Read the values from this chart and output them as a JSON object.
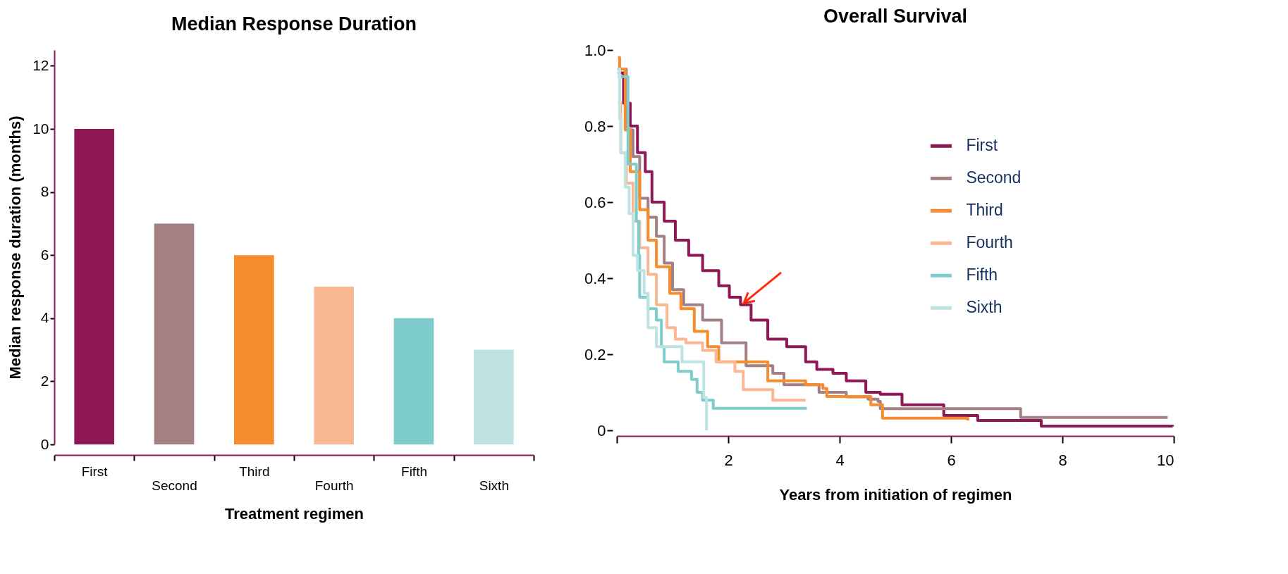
{
  "chart_data": [
    {
      "type": "bar",
      "title": "Median Response Duration",
      "xlabel": "Treatment regimen",
      "ylabel": "Median response duration (months)",
      "categories": [
        "First",
        "Second",
        "Third",
        "Fourth",
        "Fifth",
        "Sixth"
      ],
      "values": [
        10,
        7,
        6,
        5,
        4,
        3
      ],
      "colors": [
        "#8e1756",
        "#a38084",
        "#f58d2e",
        "#f9b794",
        "#7fcccc",
        "#bfe3e3"
      ],
      "ylim": [
        0,
        12.5
      ],
      "yticks": [
        0,
        2,
        4,
        6,
        8,
        10,
        12
      ]
    },
    {
      "type": "step",
      "title": "Overall Survival",
      "xlabel": "Years from initiation of regimen",
      "legend": "right",
      "marker": "none",
      "line_style": "solid",
      "xlim": [
        0,
        10
      ],
      "ylim": [
        0,
        1
      ],
      "xticks": [
        {
          "value": 0,
          "label": null
        },
        2,
        4,
        6,
        8,
        10
      ],
      "yticks": [
        0,
        0.2,
        0.4,
        0.6,
        0.8,
        {
          "value": 1,
          "label": "1.0"
        }
      ],
      "series": [
        {
          "name": "First",
          "color": "#8e1756",
          "x": [
            0.02,
            0.12,
            0.24,
            0.37,
            0.51,
            0.63,
            0.85,
            1.05,
            1.29,
            1.54,
            1.83,
            2.02,
            2.22,
            2.41,
            2.71,
            3.05,
            3.39,
            3.59,
            3.88,
            4.12,
            4.47,
            4.73,
            5.12,
            5.87,
            6.48,
            7.62,
            9.98
          ],
          "values": [
            0.94,
            0.86,
            0.8,
            0.73,
            0.68,
            0.6,
            0.55,
            0.5,
            0.46,
            0.42,
            0.38,
            0.35,
            0.33,
            0.29,
            0.24,
            0.22,
            0.18,
            0.16,
            0.15,
            0.13,
            0.1,
            0.095,
            0.067,
            0.039,
            0.026,
            0.011,
            0.01
          ]
        },
        {
          "name": "Second",
          "color": "#a38084",
          "x": [
            0.02,
            0.17,
            0.29,
            0.41,
            0.56,
            0.71,
            0.85,
            1.0,
            1.2,
            1.54,
            1.88,
            2.32,
            2.8,
            3.0,
            3.63,
            4.12,
            4.51,
            4.69,
            4.73,
            7.23,
            7.25,
            9.89
          ],
          "values": [
            0.95,
            0.79,
            0.72,
            0.61,
            0.56,
            0.51,
            0.44,
            0.37,
            0.33,
            0.29,
            0.23,
            0.17,
            0.15,
            0.12,
            0.1,
            0.088,
            0.082,
            0.076,
            0.057,
            0.057,
            0.034,
            0.034
          ]
        },
        {
          "name": "Third",
          "color": "#f58d2e",
          "x": [
            0.02,
            0.05,
            0.15,
            0.24,
            0.41,
            0.56,
            0.71,
            0.95,
            1.15,
            1.39,
            1.63,
            1.83,
            2.22,
            2.71,
            3.39,
            3.7,
            3.77,
            4.56,
            4.56,
            4.77,
            4.77,
            6.3
          ],
          "values": [
            0.98,
            0.95,
            0.79,
            0.68,
            0.58,
            0.5,
            0.43,
            0.36,
            0.32,
            0.26,
            0.22,
            0.18,
            0.18,
            0.13,
            0.12,
            0.11,
            0.089,
            0.089,
            0.067,
            0.067,
            0.032,
            0.026
          ]
        },
        {
          "name": "Fourth",
          "color": "#f9b794",
          "x": [
            0.02,
            0.07,
            0.17,
            0.29,
            0.41,
            0.56,
            0.71,
            0.9,
            1.05,
            1.24,
            1.54,
            1.78,
            2.12,
            2.27,
            2.8,
            3.39
          ],
          "values": [
            0.86,
            0.73,
            0.65,
            0.55,
            0.48,
            0.41,
            0.33,
            0.27,
            0.24,
            0.23,
            0.21,
            0.18,
            0.155,
            0.107,
            0.079,
            0.079
          ]
        },
        {
          "name": "Fifth",
          "color": "#7fcccc",
          "x": [
            0.02,
            0.2,
            0.35,
            0.39,
            0.41,
            0.56,
            0.71,
            0.8,
            0.85,
            1.1,
            1.34,
            1.44,
            1.54,
            1.73,
            3.41
          ],
          "values": [
            0.93,
            0.7,
            0.55,
            0.46,
            0.35,
            0.32,
            0.29,
            0.22,
            0.18,
            0.155,
            0.134,
            0.1,
            0.079,
            0.058,
            0.058
          ]
        },
        {
          "name": "Sixth",
          "color": "#bfe3e3",
          "x": [
            0,
            0.05,
            0.07,
            0.15,
            0.22,
            0.29,
            0.37,
            0.49,
            0.56,
            0.71,
            1.15,
            1.17,
            1.54,
            1.56,
            1.61,
            1.61
          ],
          "values": [
            0.95,
            0.82,
            0.73,
            0.64,
            0.57,
            0.46,
            0.42,
            0.36,
            0.27,
            0.22,
            0.22,
            0.18,
            0.18,
            0.086,
            0.086,
            0
          ]
        }
      ]
    }
  ]
}
